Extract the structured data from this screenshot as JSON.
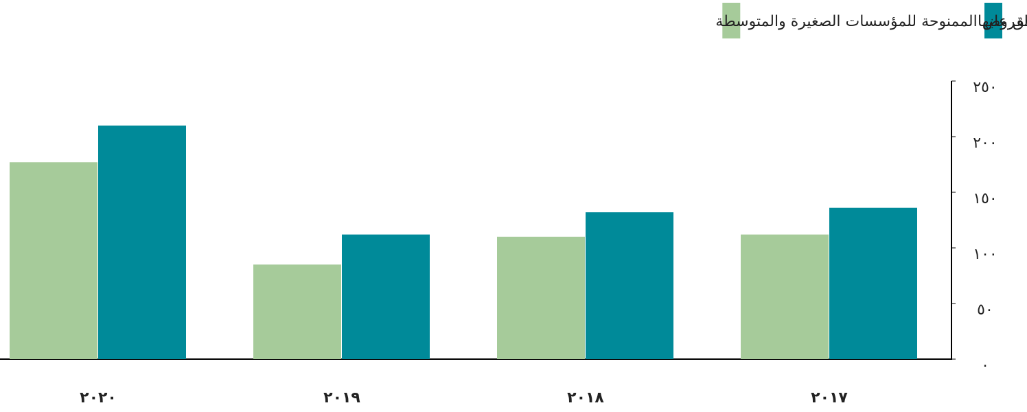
{
  "chart_data": {
    "type": "bar",
    "categories": [
      "٢٠١٧",
      "٢٠١٨",
      "٢٠١٩",
      "٢٠٢٠"
    ],
    "series": [
      {
        "name": "إجمالي عدد القروض الموافق عليها",
        "color": "#008a99",
        "values": [
          136,
          132,
          112,
          210
        ]
      },
      {
        "name": "عدد القروض الممنوحة للمؤسسات الصغيرة والمتوسطة",
        "color": "#a6cb9a",
        "values": [
          112,
          110,
          85,
          177
        ]
      }
    ],
    "ylim": [
      0,
      250
    ],
    "yticks": [
      {
        "value": 0,
        "label": "٠"
      },
      {
        "value": 50,
        "label": "٥٠"
      },
      {
        "value": 100,
        "label": "١٠٠"
      },
      {
        "value": 150,
        "label": "١٥٠"
      },
      {
        "value": 200,
        "label": "٢٠٠"
      },
      {
        "value": 250,
        "label": "٢٥٠"
      }
    ],
    "grid": false,
    "legend": "top"
  }
}
